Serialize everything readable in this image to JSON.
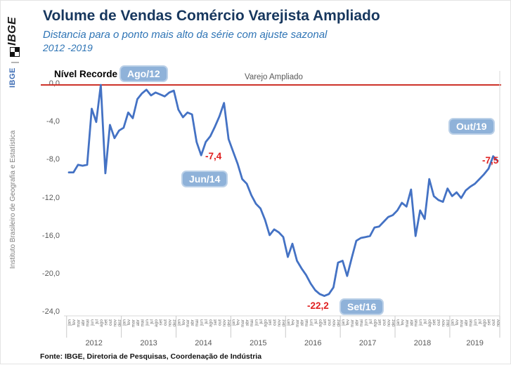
{
  "sidebar": {
    "logo": "IBGE",
    "agency_short": "IBGE",
    "agency_full": "Instituto Brasileiro de Geografia e Estatística"
  },
  "header": {
    "title": "Volume de Vendas Comércio Varejista Ampliado",
    "subtitle": "Distancia para o ponto mais alto da série com ajuste sazonal",
    "period": "2012 -2019"
  },
  "footer": {
    "source": "Fonte: IBGE, Diretoria de Pesquisas, Coordenação de Indústria"
  },
  "chart_data": {
    "type": "line",
    "title": "Volume de Vendas Comércio Varejista Ampliado",
    "subtitle": "Distancia para o ponto mais alto da série com ajuste sazonal",
    "period": "2012 -2019",
    "ylim": [
      -24,
      0
    ],
    "y_ticks": [
      "0,0",
      "-4,0",
      "-8,0",
      "-12,0",
      "-16,0",
      "-20,0",
      "-24,0"
    ],
    "grid": "off",
    "legend_position": "none",
    "record_line": {
      "label": "Nível Recorde",
      "value": 0.0,
      "color": "#CD3229"
    },
    "series_label": "Varejo Ampliado",
    "x_month_labels": [
      "jan",
      "fev",
      "mar",
      "abr",
      "mai",
      "jun",
      "jul",
      "ago",
      "set",
      "out",
      "nov",
      "dez"
    ],
    "colors": {
      "line": "#4472C4",
      "record_line": "#CD3229",
      "badge_bg": "#8FB2D9",
      "badge_border": "#BCD1E8",
      "badge_text": "#FFFFFF",
      "value_label": "#E02020",
      "axis_text": "#595959",
      "month_text": "#737373",
      "axis_line": "#D9D9D9",
      "title": "#17375E",
      "subtitle": "#2E74B5"
    },
    "series": [
      {
        "name": "Varejo Ampliado",
        "years": [
          {
            "year": "2012",
            "values": [
              -9.2,
              -9.2,
              -8.4,
              -8.5,
              -8.4,
              -2.5,
              -3.9,
              0.0,
              -9.3,
              -4.2,
              -5.6,
              -4.8
            ]
          },
          {
            "year": "2013",
            "values": [
              -4.5,
              -2.9,
              -3.5,
              -1.5,
              -0.9,
              -0.5,
              -1.1,
              -0.8,
              -1.0,
              -1.2,
              -0.8,
              -0.6
            ]
          },
          {
            "year": "2014",
            "values": [
              -2.6,
              -3.4,
              -2.9,
              -3.1,
              -6.0,
              -7.4,
              -6.0,
              -5.4,
              -4.4,
              -3.3,
              -1.9,
              -5.7
            ]
          },
          {
            "year": "2015",
            "values": [
              -7.0,
              -8.3,
              -9.9,
              -10.4,
              -11.6,
              -12.5,
              -13.0,
              -14.2,
              -15.8,
              -15.2,
              -15.5,
              -16.0
            ]
          },
          {
            "year": "2016",
            "values": [
              -18.1,
              -16.7,
              -18.5,
              -19.3,
              -20.0,
              -20.9,
              -21.6,
              -22.0,
              -22.2,
              -22.0,
              -21.3,
              -18.7
            ]
          },
          {
            "year": "2017",
            "values": [
              -18.5,
              -20.1,
              -18.2,
              -16.4,
              -16.1,
              -16.0,
              -15.9,
              -15.0,
              -14.9,
              -14.4,
              -13.9,
              -13.7
            ]
          },
          {
            "year": "2018",
            "values": [
              -13.2,
              -12.4,
              -12.8,
              -11.0,
              -15.9,
              -13.2,
              -14.1,
              -9.9,
              -11.7,
              -12.1,
              -12.3,
              -10.9
            ]
          },
          {
            "year": "2019",
            "values": [
              -11.7,
              -11.3,
              -11.9,
              -11.1,
              -10.7,
              -10.4,
              -9.9,
              -9.4,
              -8.8,
              -7.5,
              -8.0
            ]
          }
        ]
      }
    ],
    "annotations": [
      {
        "badge": "Ago/12",
        "value": ""
      },
      {
        "badge": "Jun/14",
        "value": "-7,4"
      },
      {
        "badge": "Set/16",
        "value": "-22,2"
      },
      {
        "badge": "Out/19",
        "value": "-7,5"
      }
    ]
  }
}
